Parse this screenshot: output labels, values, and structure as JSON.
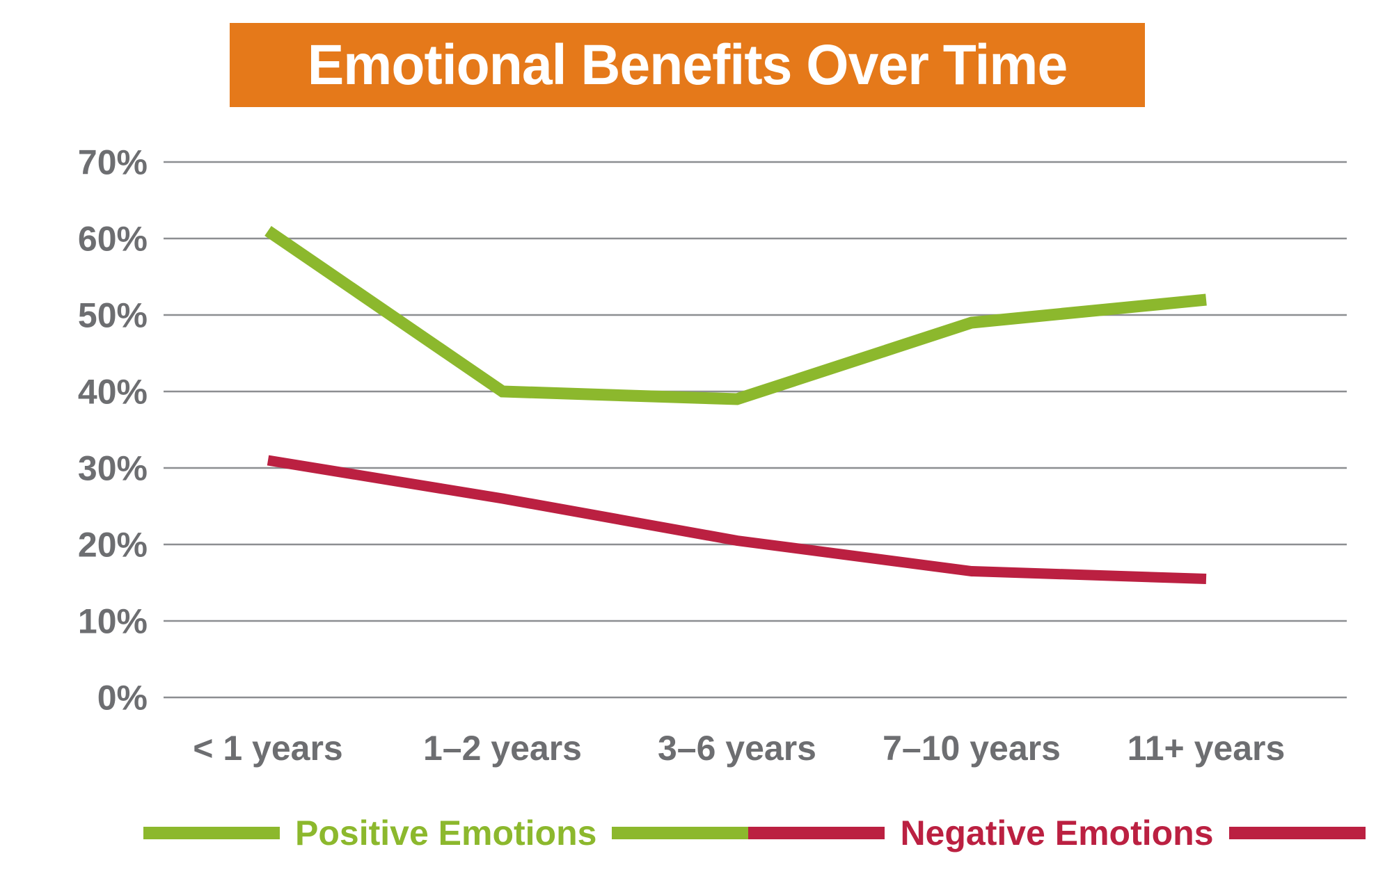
{
  "title": {
    "text": "Emotional Benefits Over Time",
    "bg_color": "#E5791A",
    "text_color": "#FFFFFF"
  },
  "chart_data": {
    "type": "line",
    "title": "Emotional Benefits Over Time",
    "categories": [
      "< 1 years",
      "1–2 years",
      "3–6 years",
      "7–10 years",
      "11+ years"
    ],
    "series": [
      {
        "name": "Positive Emotions",
        "color": "#8CB82D",
        "values": [
          61,
          40,
          39,
          49,
          52
        ]
      },
      {
        "name": "Negative Emotions",
        "color": "#BB2041",
        "values": [
          31,
          26,
          20.5,
          16.5,
          15.5
        ]
      }
    ],
    "y_ticks": [
      {
        "value": 0,
        "label": "0%"
      },
      {
        "value": 10,
        "label": "10%"
      },
      {
        "value": 20,
        "label": "20%"
      },
      {
        "value": 30,
        "label": "30%"
      },
      {
        "value": 40,
        "label": "40%"
      },
      {
        "value": 50,
        "label": "50%"
      },
      {
        "value": 60,
        "label": "60%"
      },
      {
        "value": 70,
        "label": "70%"
      }
    ],
    "ylim": [
      0,
      70
    ],
    "xlabel": "",
    "ylabel": "",
    "grid": true,
    "legend_position": "bottom",
    "axis_text_color": "#6D6E71",
    "gridline_color": "#8C8E91"
  }
}
